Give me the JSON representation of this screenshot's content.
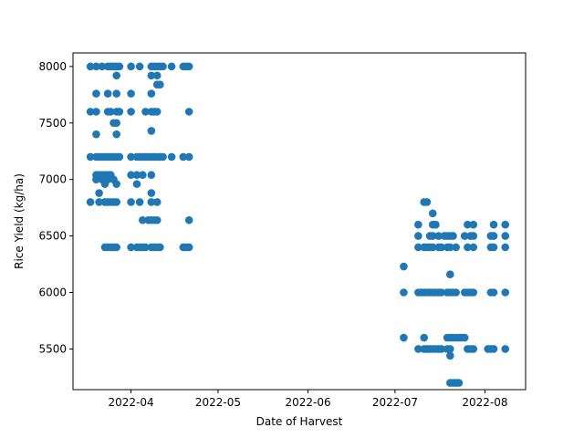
{
  "chart_data": {
    "type": "scatter",
    "title": "",
    "xlabel": "Date of Harvest",
    "ylabel": "Rice Yield (kg/ha)",
    "x_type": "date",
    "xlim": [
      "2022-03-12",
      "2022-08-15"
    ],
    "ylim": [
      5140,
      8120
    ],
    "x_ticks": [
      "2022-04-01",
      "2022-05-01",
      "2022-06-01",
      "2022-07-01",
      "2022-08-01"
    ],
    "x_tick_labels": [
      "2022-04",
      "2022-05",
      "2022-06",
      "2022-07",
      "2022-08"
    ],
    "y_ticks": [
      5500,
      6000,
      6500,
      7000,
      7500,
      8000
    ],
    "y_tick_labels": [
      "5500",
      "6000",
      "6500",
      "7000",
      "7500",
      "8000"
    ],
    "grid": false,
    "legend": "none",
    "marker_color": "#1f77b4",
    "series": [
      {
        "points": [
          [
            "2022-03-18",
            8000
          ],
          [
            "2022-03-20",
            8000
          ],
          [
            "2022-03-22",
            8000
          ],
          [
            "2022-03-24",
            8000
          ],
          [
            "2022-03-25",
            8000
          ],
          [
            "2022-03-26",
            8000
          ],
          [
            "2022-03-27",
            8000
          ],
          [
            "2022-03-28",
            8000
          ],
          [
            "2022-04-01",
            8000
          ],
          [
            "2022-04-04",
            8000
          ],
          [
            "2022-04-08",
            8000
          ],
          [
            "2022-04-09",
            8000
          ],
          [
            "2022-04-10",
            8000
          ],
          [
            "2022-04-11",
            8000
          ],
          [
            "2022-04-12",
            8000
          ],
          [
            "2022-04-15",
            8000
          ],
          [
            "2022-04-19",
            8000
          ],
          [
            "2022-04-20",
            8000
          ],
          [
            "2022-04-21",
            8000
          ],
          [
            "2022-03-27",
            7920
          ],
          [
            "2022-04-08",
            7920
          ],
          [
            "2022-04-10",
            7920
          ],
          [
            "2022-04-10",
            7840
          ],
          [
            "2022-04-11",
            7840
          ],
          [
            "2022-03-20",
            7760
          ],
          [
            "2022-03-24",
            7760
          ],
          [
            "2022-03-27",
            7760
          ],
          [
            "2022-04-01",
            7760
          ],
          [
            "2022-04-08",
            7760
          ],
          [
            "2022-03-18",
            7600
          ],
          [
            "2022-03-20",
            7600
          ],
          [
            "2022-03-24",
            7600
          ],
          [
            "2022-03-25",
            7600
          ],
          [
            "2022-03-27",
            7600
          ],
          [
            "2022-03-28",
            7600
          ],
          [
            "2022-04-01",
            7600
          ],
          [
            "2022-04-06",
            7600
          ],
          [
            "2022-04-08",
            7600
          ],
          [
            "2022-04-09",
            7600
          ],
          [
            "2022-04-10",
            7600
          ],
          [
            "2022-04-21",
            7600
          ],
          [
            "2022-03-26",
            7500
          ],
          [
            "2022-03-27",
            7500
          ],
          [
            "2022-04-08",
            7430
          ],
          [
            "2022-03-20",
            7400
          ],
          [
            "2022-03-27",
            7400
          ],
          [
            "2022-03-18",
            7200
          ],
          [
            "2022-03-20",
            7200
          ],
          [
            "2022-03-21",
            7200
          ],
          [
            "2022-03-22",
            7200
          ],
          [
            "2022-03-23",
            7200
          ],
          [
            "2022-03-24",
            7200
          ],
          [
            "2022-03-25",
            7200
          ],
          [
            "2022-03-26",
            7200
          ],
          [
            "2022-03-27",
            7200
          ],
          [
            "2022-03-28",
            7200
          ],
          [
            "2022-04-01",
            7200
          ],
          [
            "2022-04-03",
            7200
          ],
          [
            "2022-04-04",
            7200
          ],
          [
            "2022-04-05",
            7200
          ],
          [
            "2022-04-06",
            7200
          ],
          [
            "2022-04-07",
            7200
          ],
          [
            "2022-04-08",
            7200
          ],
          [
            "2022-04-09",
            7200
          ],
          [
            "2022-04-10",
            7200
          ],
          [
            "2022-04-11",
            7200
          ],
          [
            "2022-04-12",
            7200
          ],
          [
            "2022-04-15",
            7200
          ],
          [
            "2022-04-19",
            7200
          ],
          [
            "2022-04-21",
            7200
          ],
          [
            "2022-03-20",
            7040
          ],
          [
            "2022-03-21",
            7040
          ],
          [
            "2022-03-22",
            7040
          ],
          [
            "2022-03-23",
            7040
          ],
          [
            "2022-03-24",
            7040
          ],
          [
            "2022-03-25",
            7040
          ],
          [
            "2022-04-01",
            7040
          ],
          [
            "2022-04-03",
            7040
          ],
          [
            "2022-04-05",
            7040
          ],
          [
            "2022-04-08",
            7040
          ],
          [
            "2022-03-20",
            7000
          ],
          [
            "2022-03-22",
            7000
          ],
          [
            "2022-03-23",
            7000
          ],
          [
            "2022-03-24",
            7000
          ],
          [
            "2022-03-26",
            7000
          ],
          [
            "2022-03-23",
            6960
          ],
          [
            "2022-03-27",
            6960
          ],
          [
            "2022-04-03",
            6960
          ],
          [
            "2022-03-21",
            6880
          ],
          [
            "2022-04-08",
            6880
          ],
          [
            "2022-03-18",
            6800
          ],
          [
            "2022-03-21",
            6800
          ],
          [
            "2022-03-23",
            6800
          ],
          [
            "2022-03-24",
            6800
          ],
          [
            "2022-03-25",
            6800
          ],
          [
            "2022-03-26",
            6800
          ],
          [
            "2022-03-27",
            6800
          ],
          [
            "2022-04-01",
            6800
          ],
          [
            "2022-04-04",
            6800
          ],
          [
            "2022-04-08",
            6800
          ],
          [
            "2022-04-10",
            6800
          ],
          [
            "2022-04-05",
            6640
          ],
          [
            "2022-04-07",
            6640
          ],
          [
            "2022-04-08",
            6640
          ],
          [
            "2022-04-09",
            6640
          ],
          [
            "2022-04-10",
            6640
          ],
          [
            "2022-04-21",
            6640
          ],
          [
            "2022-03-23",
            6400
          ],
          [
            "2022-03-24",
            6400
          ],
          [
            "2022-03-25",
            6400
          ],
          [
            "2022-03-26",
            6400
          ],
          [
            "2022-03-27",
            6400
          ],
          [
            "2022-04-01",
            6400
          ],
          [
            "2022-04-03",
            6400
          ],
          [
            "2022-04-04",
            6400
          ],
          [
            "2022-04-05",
            6400
          ],
          [
            "2022-04-06",
            6400
          ],
          [
            "2022-04-08",
            6400
          ],
          [
            "2022-04-09",
            6400
          ],
          [
            "2022-04-10",
            6400
          ],
          [
            "2022-04-11",
            6400
          ],
          [
            "2022-04-19",
            6400
          ],
          [
            "2022-04-20",
            6400
          ],
          [
            "2022-04-21",
            6400
          ],
          [
            "2022-07-11",
            6800
          ],
          [
            "2022-07-12",
            6800
          ],
          [
            "2022-07-14",
            6700
          ],
          [
            "2022-07-09",
            6600
          ],
          [
            "2022-07-14",
            6600
          ],
          [
            "2022-07-15",
            6600
          ],
          [
            "2022-07-26",
            6600
          ],
          [
            "2022-07-28",
            6600
          ],
          [
            "2022-08-04",
            6600
          ],
          [
            "2022-08-08",
            6600
          ],
          [
            "2022-07-09",
            6500
          ],
          [
            "2022-07-13",
            6500
          ],
          [
            "2022-07-14",
            6500
          ],
          [
            "2022-07-16",
            6500
          ],
          [
            "2022-07-18",
            6500
          ],
          [
            "2022-07-19",
            6500
          ],
          [
            "2022-07-20",
            6500
          ],
          [
            "2022-07-21",
            6500
          ],
          [
            "2022-07-25",
            6500
          ],
          [
            "2022-07-27",
            6500
          ],
          [
            "2022-07-28",
            6500
          ],
          [
            "2022-08-03",
            6500
          ],
          [
            "2022-08-04",
            6500
          ],
          [
            "2022-08-08",
            6500
          ],
          [
            "2022-07-09",
            6400
          ],
          [
            "2022-07-11",
            6400
          ],
          [
            "2022-07-12",
            6400
          ],
          [
            "2022-07-13",
            6400
          ],
          [
            "2022-07-14",
            6400
          ],
          [
            "2022-07-16",
            6400
          ],
          [
            "2022-07-17",
            6400
          ],
          [
            "2022-07-19",
            6400
          ],
          [
            "2022-07-20",
            6400
          ],
          [
            "2022-07-22",
            6400
          ],
          [
            "2022-07-26",
            6400
          ],
          [
            "2022-07-28",
            6400
          ],
          [
            "2022-08-03",
            6400
          ],
          [
            "2022-08-04",
            6400
          ],
          [
            "2022-08-08",
            6400
          ],
          [
            "2022-07-04",
            6230
          ],
          [
            "2022-07-20",
            6160
          ],
          [
            "2022-07-04",
            6000
          ],
          [
            "2022-07-09",
            6000
          ],
          [
            "2022-07-10",
            6000
          ],
          [
            "2022-07-11",
            6000
          ],
          [
            "2022-07-12",
            6000
          ],
          [
            "2022-07-13",
            6000
          ],
          [
            "2022-07-14",
            6000
          ],
          [
            "2022-07-15",
            6000
          ],
          [
            "2022-07-16",
            6000
          ],
          [
            "2022-07-17",
            6000
          ],
          [
            "2022-07-19",
            6000
          ],
          [
            "2022-07-20",
            6000
          ],
          [
            "2022-07-21",
            6000
          ],
          [
            "2022-07-22",
            6000
          ],
          [
            "2022-07-25",
            6000
          ],
          [
            "2022-07-26",
            6000
          ],
          [
            "2022-07-27",
            6000
          ],
          [
            "2022-07-28",
            6000
          ],
          [
            "2022-08-03",
            6000
          ],
          [
            "2022-08-04",
            6000
          ],
          [
            "2022-08-08",
            6000
          ],
          [
            "2022-07-04",
            5600
          ],
          [
            "2022-07-11",
            5600
          ],
          [
            "2022-07-19",
            5600
          ],
          [
            "2022-07-20",
            5600
          ],
          [
            "2022-07-21",
            5600
          ],
          [
            "2022-07-22",
            5600
          ],
          [
            "2022-07-23",
            5600
          ],
          [
            "2022-07-24",
            5600
          ],
          [
            "2022-07-25",
            5600
          ],
          [
            "2022-07-09",
            5500
          ],
          [
            "2022-07-11",
            5500
          ],
          [
            "2022-07-12",
            5500
          ],
          [
            "2022-07-13",
            5500
          ],
          [
            "2022-07-14",
            5500
          ],
          [
            "2022-07-15",
            5500
          ],
          [
            "2022-07-16",
            5500
          ],
          [
            "2022-07-17",
            5500
          ],
          [
            "2022-07-19",
            5500
          ],
          [
            "2022-07-20",
            5500
          ],
          [
            "2022-07-26",
            5500
          ],
          [
            "2022-07-27",
            5500
          ],
          [
            "2022-07-28",
            5500
          ],
          [
            "2022-08-02",
            5500
          ],
          [
            "2022-08-03",
            5500
          ],
          [
            "2022-08-04",
            5500
          ],
          [
            "2022-08-08",
            5500
          ],
          [
            "2022-07-20",
            5440
          ],
          [
            "2022-07-20",
            5200
          ],
          [
            "2022-07-21",
            5200
          ],
          [
            "2022-07-22",
            5200
          ],
          [
            "2022-07-23",
            5200
          ]
        ]
      }
    ]
  }
}
